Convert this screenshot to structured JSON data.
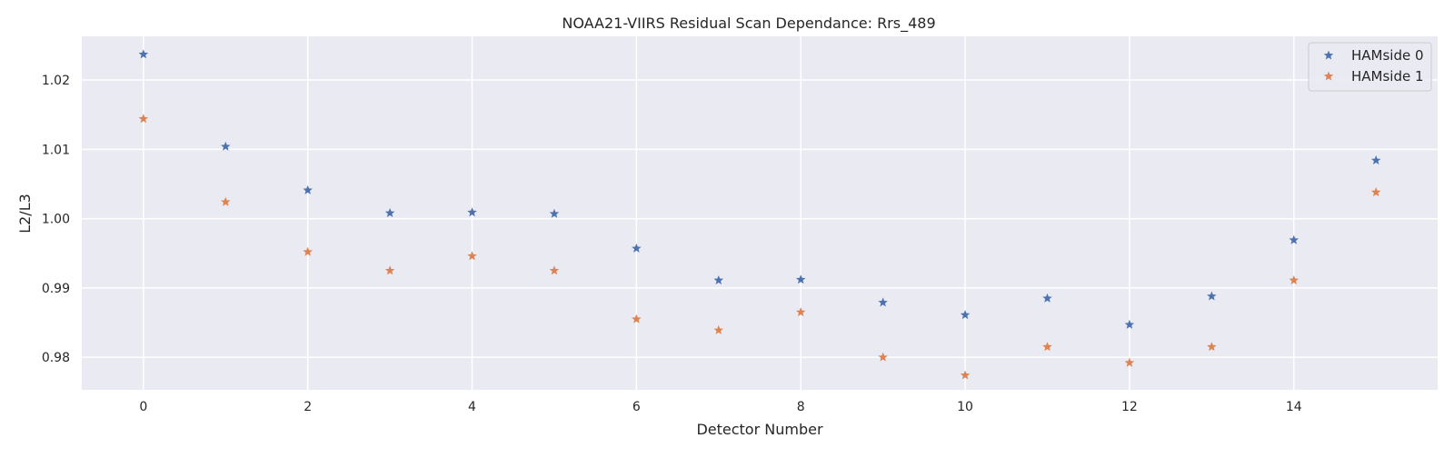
{
  "chart_data": {
    "type": "scatter",
    "title": "NOAA21-VIIRS Residual Scan Dependance: Rrs_489",
    "xlabel": "Detector Number",
    "ylabel": "L2/L3",
    "xlim": [
      -0.75,
      15.75
    ],
    "ylim": [
      0.9753,
      1.0263
    ],
    "xticks": [
      0,
      2,
      4,
      6,
      8,
      10,
      12,
      14
    ],
    "xtick_labels": [
      "0",
      "2",
      "4",
      "6",
      "8",
      "10",
      "12",
      "14"
    ],
    "yticks": [
      0.98,
      0.99,
      1.0,
      1.01,
      1.02
    ],
    "ytick_labels": [
      "0.98",
      "0.99",
      "1.00",
      "1.01",
      "1.02"
    ],
    "grid": true,
    "legend_position": "top-right",
    "marker": "star",
    "x": [
      0,
      1,
      2,
      3,
      4,
      5,
      6,
      7,
      8,
      9,
      10,
      11,
      12,
      13,
      14,
      15
    ],
    "series": [
      {
        "name": "HAMside 0",
        "color": "#4c72b0",
        "values": [
          1.0237,
          1.0104,
          1.0041,
          1.0008,
          1.0009,
          1.0007,
          0.9957,
          0.9911,
          0.9912,
          0.9879,
          0.9861,
          0.9885,
          0.9847,
          0.9888,
          0.9969,
          1.0084
        ]
      },
      {
        "name": "HAMside 1",
        "color": "#dd8452",
        "values": [
          1.0144,
          1.0024,
          0.9952,
          0.9925,
          0.9946,
          0.9925,
          0.9855,
          0.9839,
          0.9865,
          0.98,
          0.9774,
          0.9815,
          0.9792,
          0.9815,
          0.9911,
          1.0038
        ]
      }
    ]
  }
}
